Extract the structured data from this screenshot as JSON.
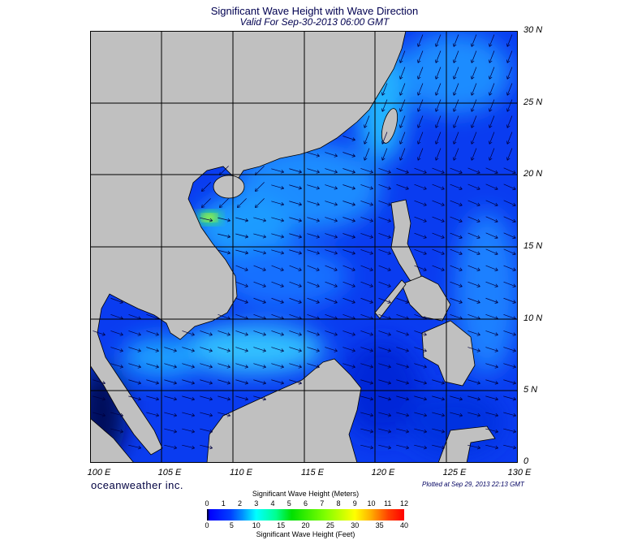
{
  "header": {
    "title": "Significant Wave Height with Wave Direction",
    "subtitle": "Valid For Sep-30-2013 06:00 GMT"
  },
  "map": {
    "lon_labels": [
      "100 E",
      "105 E",
      "110 E",
      "115 E",
      "120 E",
      "125 E",
      "130 E"
    ],
    "lat_labels": [
      "30 N",
      "25 N",
      "20 N",
      "15 N",
      "10 N",
      "5 N",
      "0"
    ],
    "colors": {
      "land": "#c0c0c0",
      "ocean": "#0a3cf0",
      "ocean_light": "#1aa0ff",
      "peak": "#c8ff00"
    }
  },
  "footer": {
    "brand": "oceanweather inc.",
    "plotted": "Plotted at Sep 29, 2013 22:13 GMT"
  },
  "colorbar": {
    "meters_label": "Significant Wave Height (Meters)",
    "feet_label": "Significant Wave Height (Feet)",
    "meters_ticks": [
      "0",
      "1",
      "2",
      "3",
      "4",
      "5",
      "6",
      "7",
      "8",
      "9",
      "10",
      "11",
      "12"
    ],
    "feet_ticks": [
      "0",
      "5",
      "10",
      "15",
      "20",
      "25",
      "30",
      "35",
      "40"
    ]
  }
}
